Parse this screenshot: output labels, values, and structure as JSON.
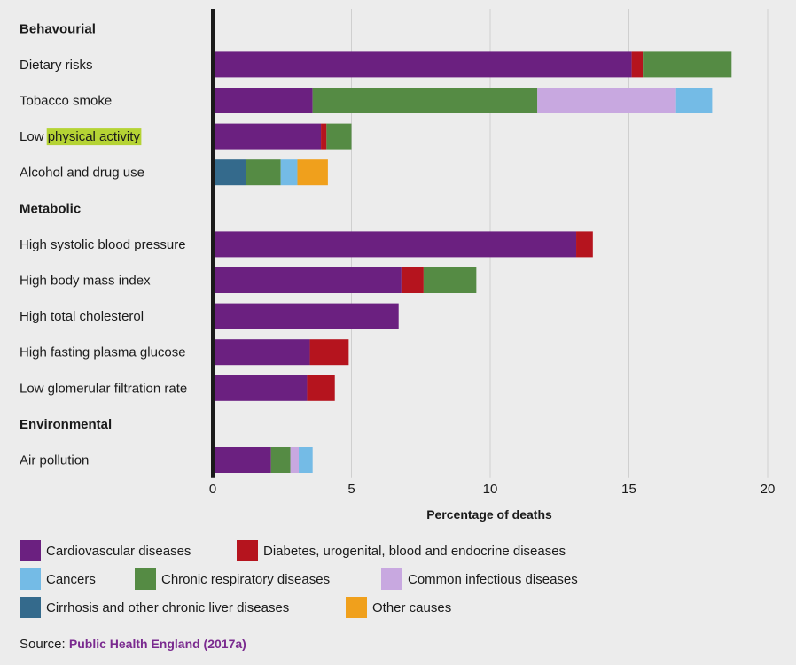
{
  "chart_data": {
    "type": "bar",
    "orientation": "horizontal",
    "stacked": true,
    "xlabel": "Percentage of deaths",
    "xlim": [
      0,
      20
    ],
    "xticks": [
      0,
      5,
      10,
      15,
      20
    ],
    "grid": true,
    "highlight_text": "physical activity",
    "rows": [
      {
        "kind": "group",
        "label": "Behavourial"
      },
      {
        "kind": "bar",
        "label": "Dietary risks",
        "values": [
          15.1,
          0.4,
          3.2,
          0,
          0,
          0,
          0
        ]
      },
      {
        "kind": "bar",
        "label": "Tobacco smoke",
        "values": [
          3.6,
          0,
          8.1,
          5.0,
          1.3,
          0,
          0
        ]
      },
      {
        "kind": "bar",
        "label": "Low physical activity",
        "values": [
          3.9,
          0.2,
          0.9,
          0,
          0,
          0,
          0
        ]
      },
      {
        "kind": "bar",
        "label": "Alcohol and drug use",
        "values": [
          0,
          0,
          1.25,
          0,
          0.6,
          1.2,
          1.1
        ]
      },
      {
        "kind": "group",
        "label": "Metabolic"
      },
      {
        "kind": "bar",
        "label": "High systolic blood pressure",
        "values": [
          13.1,
          0.6,
          0,
          0,
          0,
          0,
          0
        ]
      },
      {
        "kind": "bar",
        "label": "High body mass index",
        "values": [
          6.8,
          0.8,
          1.9,
          0,
          0,
          0,
          0
        ]
      },
      {
        "kind": "bar",
        "label": "High total cholesterol",
        "values": [
          6.7,
          0,
          0,
          0,
          0,
          0,
          0
        ]
      },
      {
        "kind": "bar",
        "label": "High fasting plasma glucose",
        "values": [
          3.5,
          1.4,
          0,
          0,
          0,
          0,
          0
        ]
      },
      {
        "kind": "bar",
        "label": "Low glomerular filtration rate",
        "values": [
          3.4,
          1.0,
          0,
          0,
          0,
          0,
          0
        ]
      },
      {
        "kind": "group",
        "label": "Environmental"
      },
      {
        "kind": "bar",
        "label": "Air pollution",
        "values": [
          2.1,
          0,
          0.7,
          0.3,
          0.5,
          0,
          0
        ]
      }
    ],
    "series": [
      {
        "name": "Cardiovascular diseases",
        "color": "#6b2080"
      },
      {
        "name": "Diabetes, urogenital, blood and endocrine diseases",
        "color": "#b5141e"
      },
      {
        "name": "Chronic respiratory diseases",
        "color": "#558b44"
      },
      {
        "name": "Common infectious diseases",
        "color": "#c8a8e0"
      },
      {
        "name": "Cancers",
        "color": "#74bbe6"
      },
      {
        "name": "Cirrhosis and other chronic liver diseases",
        "color": "#346a8c"
      },
      {
        "name": "Other causes",
        "color": "#f0a01c"
      }
    ],
    "stack_order": [
      5,
      0,
      1,
      2,
      3,
      4,
      6
    ]
  },
  "source": {
    "prefix": "Source:",
    "link": "Public Health England (2017a)"
  }
}
